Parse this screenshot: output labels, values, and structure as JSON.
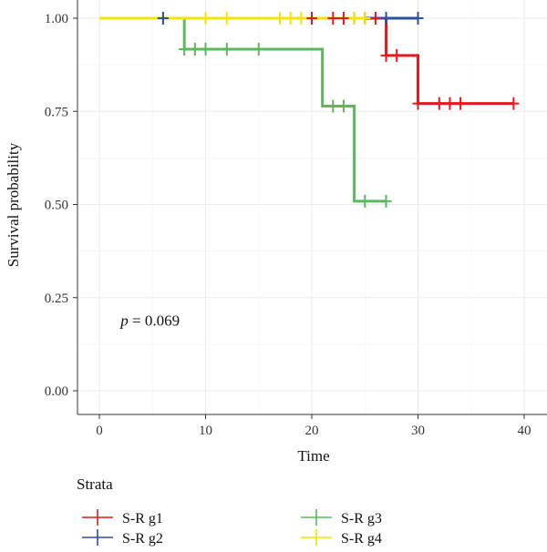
{
  "chart_data": {
    "type": "line",
    "subtype": "kaplan-meier",
    "title": "",
    "xlabel": "Time",
    "ylabel": "Survival probability",
    "xlim": [
      0,
      40
    ],
    "ylim": [
      0,
      1
    ],
    "x_ticks": [
      "0",
      "10",
      "20",
      "30",
      "40"
    ],
    "y_ticks": [
      "0.00",
      "0.25",
      "0.50",
      "0.75",
      "1.00"
    ],
    "grid": true,
    "annotation": {
      "prefix": "p",
      "text": " = 0.069",
      "x": 2,
      "y": 0.19
    },
    "legend": {
      "title": "Strata",
      "position": "bottom"
    },
    "series": [
      {
        "name": "S-R g1",
        "color": "#e41a1c",
        "steps": [
          [
            0,
            1.0
          ],
          [
            27,
            0.9
          ],
          [
            30,
            0.771
          ],
          [
            39,
            0.771
          ]
        ],
        "censors": [
          [
            20,
            1.0
          ],
          [
            22,
            1.0
          ],
          [
            23,
            1.0
          ],
          [
            25,
            1.0
          ],
          [
            26,
            1.0
          ],
          [
            27,
            0.9
          ],
          [
            28,
            0.9
          ],
          [
            30,
            0.771
          ],
          [
            32,
            0.771
          ],
          [
            33,
            0.771
          ],
          [
            34,
            0.771
          ],
          [
            39,
            0.771
          ]
        ]
      },
      {
        "name": "S-R g2",
        "color": "#2f4f9f",
        "steps": [
          [
            0,
            1.0
          ],
          [
            30,
            1.0
          ]
        ],
        "censors": [
          [
            6,
            1.0
          ],
          [
            24,
            1.0
          ],
          [
            27,
            1.0
          ],
          [
            30,
            1.0
          ]
        ]
      },
      {
        "name": "S-R g3",
        "color": "#5cb85c",
        "steps": [
          [
            0,
            1.0
          ],
          [
            8,
            0.917
          ],
          [
            21,
            0.764
          ],
          [
            24,
            0.509
          ],
          [
            27,
            0.509
          ]
        ],
        "censors": [
          [
            6,
            1.0
          ],
          [
            8,
            0.917
          ],
          [
            9,
            0.917
          ],
          [
            10,
            0.917
          ],
          [
            12,
            0.917
          ],
          [
            15,
            0.917
          ],
          [
            22,
            0.764
          ],
          [
            23,
            0.764
          ],
          [
            25,
            0.509
          ],
          [
            27,
            0.509
          ]
        ]
      },
      {
        "name": "S-R g4",
        "color": "#f2e600",
        "steps": [
          [
            0,
            1.0
          ],
          [
            25,
            1.0
          ]
        ],
        "censors": [
          [
            10,
            1.0
          ],
          [
            12,
            1.0
          ],
          [
            17,
            1.0
          ],
          [
            18,
            1.0
          ],
          [
            19,
            1.0
          ],
          [
            24,
            1.0
          ],
          [
            25,
            1.0
          ]
        ]
      }
    ]
  }
}
